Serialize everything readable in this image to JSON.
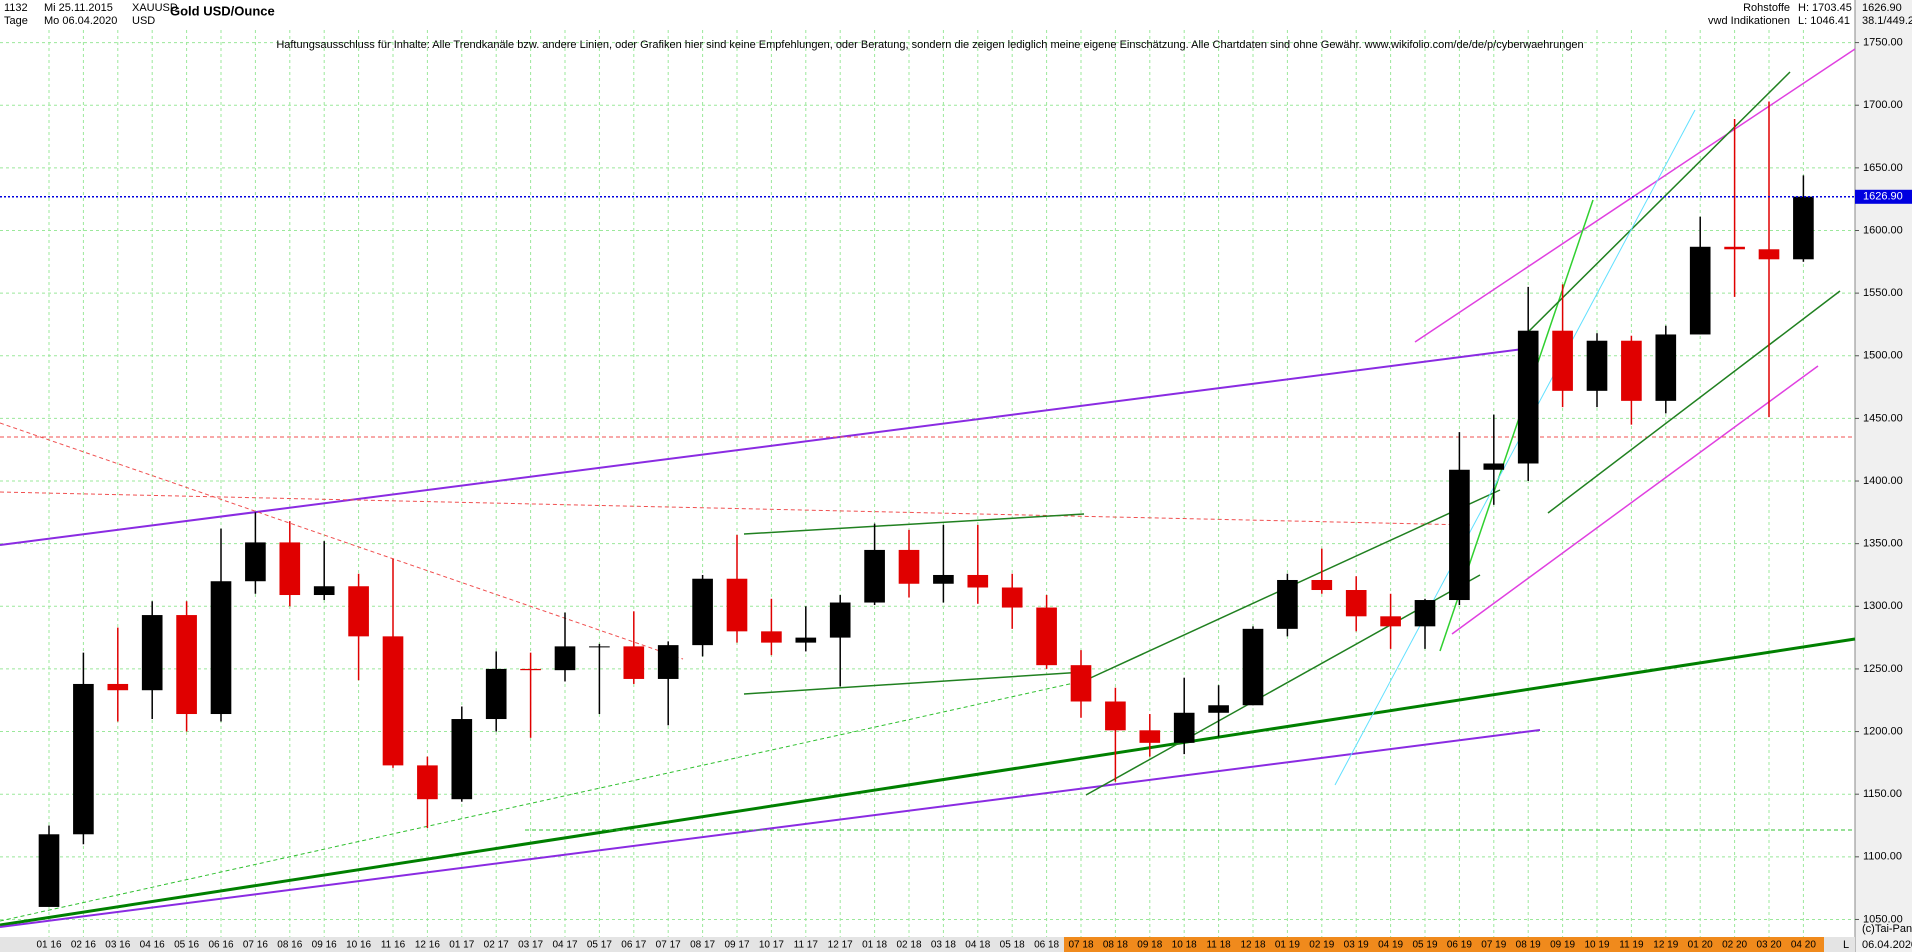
{
  "header": {
    "count": "1132",
    "from": "Mi 25.11.2015",
    "period": "Tage",
    "to": "Mo 06.04.2020",
    "symbol": "XAUUSD",
    "currency": "USD",
    "title": "Gold USD/Ounce",
    "group": "Rohstoffe",
    "source": "vwd Indikationen",
    "high": "H: 1703.45",
    "low": "L: 1046.41",
    "last": "1626.90",
    "ratio": "38.1/449.2",
    "disclaimer": "Haftungsausschluss für Inhalte: Alle Trendkanäle bzw. andere Linien, oder Grafiken hier sind keine Empfehlungen, oder Beratung, sondern die zeigen lediglich meine eigene Einschätzung. Alle Chartdaten sind ohne Gewähr.  www.wikifolio.com/de/de/p/cyberwaehrungen",
    "copyright": "(c)Tai-Pan",
    "date": "06.04.2020",
    "scale": "L"
  },
  "chart_data": {
    "type": "candlestick",
    "categories": [
      "01 16",
      "02 16",
      "03 16",
      "04 16",
      "05 16",
      "06 16",
      "07 16",
      "08 16",
      "09 16",
      "10 16",
      "11 16",
      "12 16",
      "01 17",
      "02 17",
      "03 17",
      "04 17",
      "05 17",
      "06 17",
      "07 17",
      "08 17",
      "09 17",
      "10 17",
      "11 17",
      "12 17",
      "01 18",
      "02 18",
      "03 18",
      "04 18",
      "05 18",
      "06 18",
      "07 18",
      "08 18",
      "09 18",
      "10 18",
      "11 18",
      "12 18",
      "01 19",
      "02 19",
      "03 19",
      "04 19",
      "05 19",
      "06 19",
      "07 19",
      "08 19",
      "09 19",
      "10 19",
      "11 19",
      "12 19",
      "01 20",
      "02 20",
      "03 20",
      "04 20"
    ],
    "open": [
      1060,
      1118,
      1238,
      1233,
      1293,
      1214,
      1320,
      1351,
      1309,
      1316,
      1276,
      1173,
      1146,
      1210,
      1250,
      1249,
      1268,
      1268,
      1242,
      1269,
      1322,
      1280,
      1271,
      1275,
      1303,
      1345,
      1318,
      1325,
      1315,
      1299,
      1253,
      1224,
      1201,
      1191,
      1215,
      1221,
      1282,
      1321,
      1313,
      1292,
      1284,
      1305,
      1409,
      1414,
      1520,
      1472,
      1512,
      1464,
      1517,
      1587,
      1585,
      1577
    ],
    "high": [
      1125,
      1263,
      1283,
      1304,
      1304,
      1362,
      1375,
      1368,
      1352,
      1326,
      1338,
      1180,
      1220,
      1264,
      1263,
      1295,
      1270,
      1296,
      1272,
      1325,
      1357,
      1306,
      1300,
      1309,
      1366,
      1361,
      1365,
      1365,
      1326,
      1309,
      1265,
      1235,
      1214,
      1243,
      1237,
      1284,
      1326,
      1346,
      1324,
      1310,
      1306,
      1439,
      1453,
      1555,
      1557,
      1518,
      1516,
      1524,
      1611,
      1689,
      1703,
      1644
    ],
    "low": [
      1062,
      1110,
      1208,
      1210,
      1200,
      1208,
      1310,
      1300,
      1305,
      1241,
      1171,
      1123,
      1144,
      1200,
      1195,
      1240,
      1214,
      1238,
      1205,
      1260,
      1271,
      1261,
      1264,
      1236,
      1301,
      1307,
      1303,
      1302,
      1282,
      1250,
      1211,
      1160,
      1180,
      1182,
      1196,
      1221,
      1276,
      1310,
      1280,
      1266,
      1266,
      1301,
      1381,
      1400,
      1459,
      1459,
      1445,
      1454,
      1517,
      1547,
      1451,
      1575
    ],
    "close": [
      1118,
      1238,
      1233,
      1293,
      1214,
      1320,
      1351,
      1309,
      1316,
      1276,
      1173,
      1146,
      1210,
      1250,
      1249,
      1268,
      1268,
      1242,
      1269,
      1322,
      1280,
      1271,
      1275,
      1303,
      1345,
      1318,
      1325,
      1315,
      1299,
      1253,
      1224,
      1201,
      1191,
      1215,
      1221,
      1282,
      1321,
      1313,
      1292,
      1284,
      1305,
      1409,
      1414,
      1520,
      1472,
      1512,
      1464,
      1517,
      1587,
      1585,
      1577,
      1627
    ],
    "up_color": "#000000",
    "down_color": "#e00000",
    "current": {
      "value": 1626.9,
      "label": "1626.90"
    },
    "ylim": [
      1036,
      1784
    ],
    "yticks": [
      {
        "value": 1050,
        "label": "1050.00"
      },
      {
        "value": 1100,
        "label": "1100.00"
      },
      {
        "value": 1150,
        "label": "1150.00"
      },
      {
        "value": 1200,
        "label": "1200.00"
      },
      {
        "value": 1250,
        "label": "1250.00"
      },
      {
        "value": 1300,
        "label": "1300.00"
      },
      {
        "value": 1350,
        "label": "1350.00"
      },
      {
        "value": 1400,
        "label": "1400.00"
      },
      {
        "value": 1450,
        "label": "1450.00"
      },
      {
        "value": 1500,
        "label": "1500.00"
      },
      {
        "value": 1550,
        "label": "1550.00"
      },
      {
        "value": 1600,
        "label": "1600.00"
      },
      {
        "value": 1650,
        "label": "1650.00"
      },
      {
        "value": 1700,
        "label": "1700.00"
      },
      {
        "value": 1750,
        "label": "1750.00"
      }
    ],
    "grid": true
  }
}
